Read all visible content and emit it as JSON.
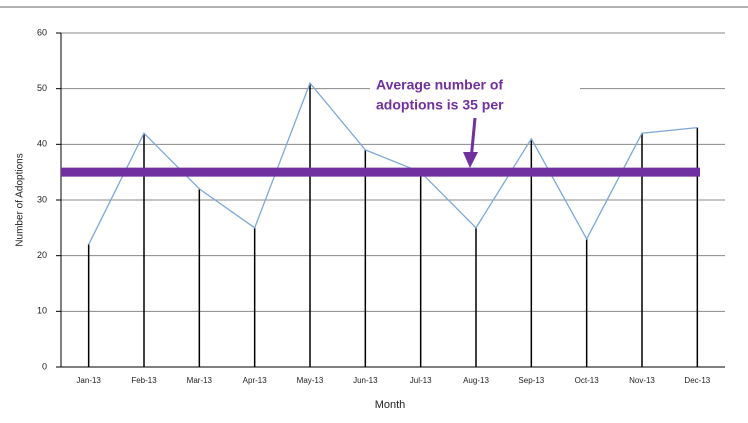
{
  "chart_data": {
    "type": "line",
    "y_axis_label": "Number of Adoptions",
    "x_axis_label": "Month",
    "categories": [
      "Jan-13",
      "Feb-13",
      "Mar-13",
      "Apr-13",
      "May-13",
      "Jun-13",
      "Jul-13",
      "Aug-13",
      "Sep-13",
      "Oct-13",
      "Nov-13",
      "Dec-13"
    ],
    "series": [
      {
        "color": "#7fa8d8",
        "values": [
          22,
          42,
          32,
          25,
          51,
          39,
          35,
          25,
          41,
          23,
          42,
          43
        ]
      }
    ],
    "drop_line_color": "#000000",
    "average": 35,
    "average_color": "#7030a0",
    "annotation": [
      "Average number of",
      "adoptions is 35 per"
    ],
    "ylim": [
      0,
      60
    ],
    "yticks": [
      0,
      10,
      20,
      30,
      40,
      50,
      60
    ],
    "grid": true
  }
}
